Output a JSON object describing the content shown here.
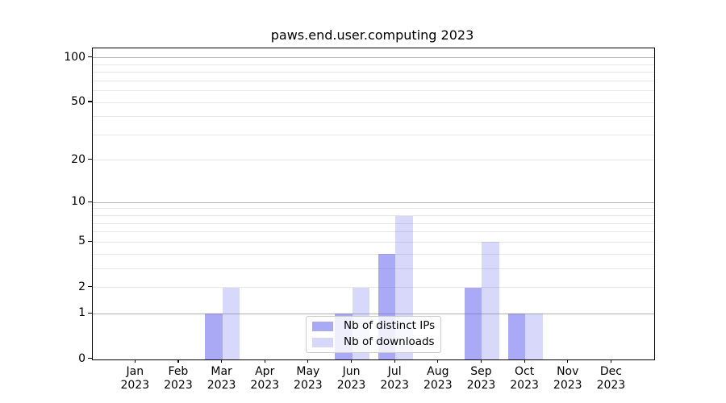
{
  "title": "paws.end.user.computing 2023",
  "chart_data": {
    "type": "bar",
    "title": "paws.end.user.computing 2023",
    "categories": [
      "Jan",
      "Feb",
      "Mar",
      "Apr",
      "May",
      "Jun",
      "Jul",
      "Aug",
      "Sep",
      "Oct",
      "Nov",
      "Dec"
    ],
    "year": "2023",
    "series": [
      {
        "name": "Nb of distinct IPs",
        "color": "rgba(90,90,235,0.52)",
        "legend_color": "#a9a9f4",
        "values": [
          0,
          0,
          1,
          0,
          0,
          1,
          4,
          0,
          2,
          1,
          0,
          0
        ]
      },
      {
        "name": "Nb of downloads",
        "color": "rgba(90,90,235,0.24)",
        "legend_color": "#d7d7fa",
        "values": [
          0,
          0,
          2,
          0,
          0,
          2,
          8,
          0,
          5,
          1,
          0,
          0
        ]
      }
    ],
    "yscale": "log1p",
    "ylim": [
      0,
      116
    ],
    "yticks": [
      0,
      1,
      2,
      5,
      10,
      20,
      50,
      100
    ],
    "major_gridlines": [
      1,
      10,
      100
    ],
    "minor_gridlines": [
      2,
      3,
      4,
      5,
      6,
      7,
      8,
      9,
      20,
      30,
      40,
      50,
      60,
      70,
      80,
      90
    ],
    "grid": true,
    "legend_position": "lower center"
  },
  "colors": {
    "background": "#ffffff",
    "axis": "#000000",
    "major_grid": "#b3b3b3",
    "minor_grid": "#e6e6e6",
    "legend_border": "#cccccc",
    "text": "#000000"
  }
}
